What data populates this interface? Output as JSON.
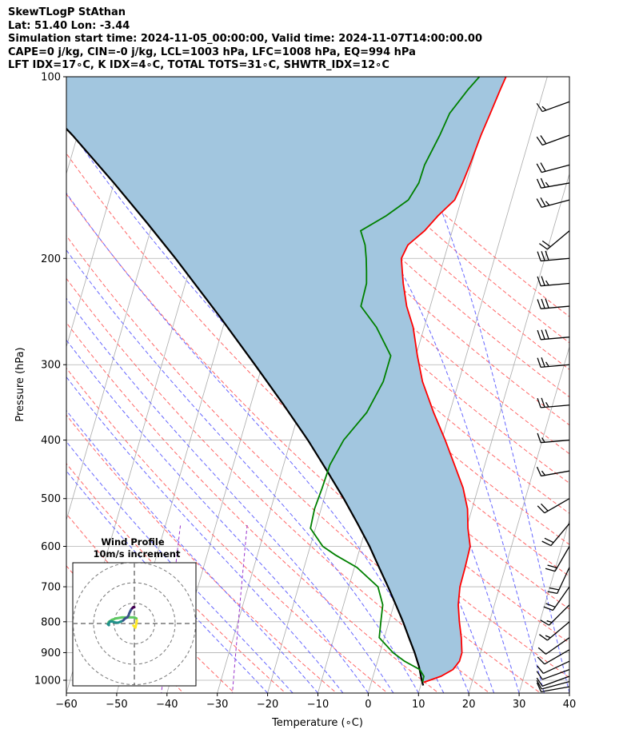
{
  "header": {
    "line1": "SkewTLogP StAthan",
    "line2": "Lat: 51.40   Lon: -3.44",
    "line3": "Simulation start time: 2024-11-05_00:00:00, Valid time: 2024-11-07T14:00:00.00",
    "line4": "CAPE=0 j/kg, CIN=-0 j/kg, LCL=1003 hPa, LFC=1008 hPa, EQ=994 hPa",
    "line5": "LFT IDX=17∘C, K IDX=4∘C, TOTAL TOTS=31∘C, SHWTR_IDX=12∘C"
  },
  "chart_data": {
    "type": "line",
    "subtype": "skew-t log-p",
    "xlabel": "Temperature (∘C)",
    "ylabel": "Pressure (hPa)",
    "xlim": [
      -60,
      40
    ],
    "ylim": [
      1050,
      100
    ],
    "y_scale": "log",
    "x_ticks": [
      "−60",
      "−50",
      "−40",
      "−30",
      "−20",
      "−10",
      "0",
      "10",
      "20",
      "30",
      "40"
    ],
    "x_tick_values": [
      -60,
      -50,
      -40,
      -30,
      -20,
      -10,
      0,
      10,
      20,
      30,
      40
    ],
    "y_ticks": [
      1000,
      900,
      800,
      700,
      600,
      500,
      400,
      300,
      200,
      100
    ],
    "grid": true,
    "colors": {
      "temperature": "#ff0000",
      "dewpoint": "#008000",
      "parcel": "#000000",
      "shade": "#a2c6df",
      "dry_adiabats": "#ff6666",
      "moist_adiabats": "#6666ff",
      "isotherms": "#aaaaaa",
      "mixing_ratio": "#9933cc"
    },
    "series": [
      {
        "key": "temperature",
        "pressure": [
          1008,
          985,
          960,
          930,
          900,
          850,
          800,
          750,
          700,
          650,
          600,
          560,
          520,
          480,
          440,
          400,
          360,
          320,
          290,
          260,
          240,
          220,
          210,
          200,
          190,
          180,
          170,
          160,
          150,
          140,
          125,
          115,
          105,
          100
        ],
        "values": [
          10.4,
          13.5,
          15.5,
          16.3,
          16.3,
          15.3,
          14.0,
          12.8,
          12.1,
          12.0,
          11.8,
          10.3,
          9.1,
          7.0,
          4.0,
          0.7,
          -3.2,
          -7.2,
          -9.7,
          -12.2,
          -14.7,
          -16.7,
          -17.6,
          -18.5,
          -18.0,
          -15.5,
          -13.7,
          -11.3,
          -10.7,
          -10.3,
          -9.8,
          -9.2,
          -8.6,
          -8.2
        ]
      },
      {
        "key": "dewpoint",
        "pressure": [
          1008,
          985,
          960,
          930,
          900,
          850,
          800,
          750,
          700,
          650,
          620,
          600,
          560,
          520,
          480,
          440,
          400,
          360,
          320,
          290,
          260,
          240,
          220,
          210,
          200,
          190,
          180,
          170,
          160,
          150,
          140,
          125,
          115,
          105,
          100
        ],
        "values": [
          10.2,
          10.1,
          8.9,
          5.4,
          2.6,
          -1.0,
          -1.6,
          -2.2,
          -4.2,
          -9.5,
          -14.5,
          -17.5,
          -21.0,
          -21.3,
          -21.0,
          -20.8,
          -19.5,
          -16.5,
          -15.0,
          -15.0,
          -19.5,
          -23.8,
          -24.0,
          -24.7,
          -25.5,
          -26.5,
          -28.2,
          -24.0,
          -20.5,
          -19.4,
          -19.3,
          -18.0,
          -17.3,
          -15.0,
          -13.5
        ]
      },
      {
        "key": "parcel",
        "pressure": [
          1020,
          1000,
          950,
          900,
          850,
          800,
          750,
          700,
          650,
          600,
          550,
          500,
          450,
          400,
          350,
          300,
          250,
          200,
          175,
          150,
          125,
          100
        ],
        "values": [
          10.5,
          9.9,
          8.6,
          6.9,
          4.9,
          2.8,
          0.4,
          -2.2,
          -5.1,
          -8.2,
          -11.9,
          -16.1,
          -21.0,
          -26.6,
          -33.4,
          -41.5,
          -51.2,
          -63.4,
          -71.0,
          -80.0,
          -91.0,
          -105.5
        ]
      }
    ],
    "wind_barbs": {
      "pressure": [
        1025,
        1005,
        985,
        960,
        930,
        890,
        850,
        800,
        750,
        700,
        650,
        600,
        550,
        500,
        450,
        400,
        350,
        300,
        270,
        240,
        220,
        200,
        180,
        160,
        150,
        140,
        125,
        110
      ],
      "speed_kt": [
        12,
        14,
        12,
        10,
        10,
        10,
        12,
        15,
        18,
        20,
        22,
        23,
        22,
        20,
        15,
        15,
        25,
        25,
        30,
        30,
        25,
        30,
        20,
        25,
        25,
        20,
        20,
        15
      ],
      "direction_deg": [
        260,
        255,
        250,
        250,
        245,
        240,
        235,
        230,
        225,
        215,
        205,
        210,
        220,
        240,
        260,
        265,
        265,
        265,
        265,
        265,
        265,
        265,
        230,
        255,
        260,
        255,
        250,
        250
      ]
    },
    "hodograph": {
      "title": "Wind Profile",
      "subtitle": "10m/s increment",
      "ring_step_ms": 10,
      "u_ms": [
        -0.5,
        0.5,
        1.0,
        1.2,
        1.0,
        0.0,
        -3.0,
        -6.0,
        -9.0,
        -11.0,
        -12.5,
        -13.0,
        -12.5,
        -12.5,
        -12.0,
        -11.0,
        -9.5,
        -8.0,
        -6.5,
        -5.5,
        -4.5,
        -3.5,
        -2.8,
        -2.5,
        -2.0,
        -1.5,
        -1.0,
        -0.5,
        -0.2,
        0.0
      ],
      "v_ms": [
        -1.0,
        -2.0,
        0.0,
        1.5,
        2.5,
        3.0,
        3.0,
        3.0,
        2.5,
        1.8,
        0.8,
        -0.3,
        -0.8,
        0.0,
        1.0,
        1.0,
        0.5,
        0.4,
        1.0,
        1.5,
        2.5,
        3.0,
        4.0,
        5.0,
        6.0,
        7.0,
        7.5,
        8.0,
        8.0,
        8.0
      ]
    }
  }
}
